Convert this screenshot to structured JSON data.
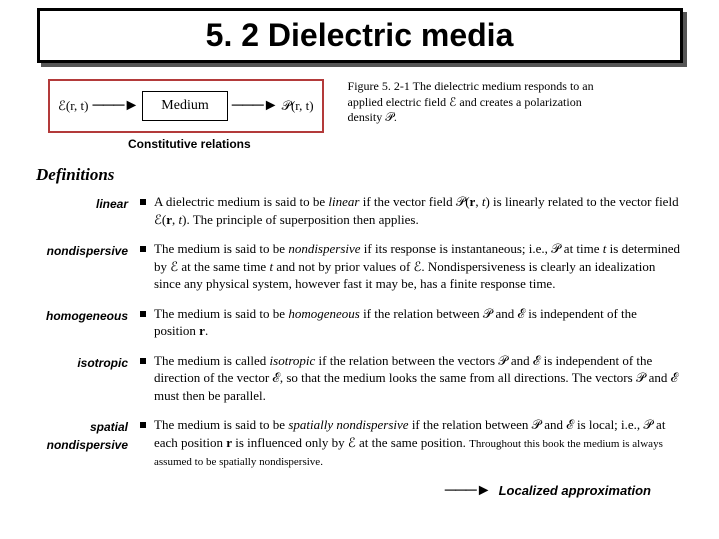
{
  "title": "5. 2  Dielectric media",
  "figure": {
    "input": "ℰ(r, t)",
    "medium": "Medium",
    "output": "𝒫(r, t)",
    "caption_label": "Figure 5. 2-1",
    "caption_text": "The dielectric medium responds to an applied electric field ℰ and creates a polarization density 𝒫."
  },
  "constitutive_label": "Constitutive relations",
  "definitions_heading": "Definitions",
  "defs": [
    {
      "label": "linear",
      "text": "A dielectric medium is said to be linear if the vector field 𝒫(r, t) is linearly related to the vector field ℰ(r, t). The principle of superposition then applies."
    },
    {
      "label": "nondispersive",
      "text": "The medium is said to be nondispersive if its response is instantaneous; i.e., 𝒫 at time t is determined by ℰ at the same time t and not by prior values of ℰ. Nondispersiveness is clearly an idealization since any physical system, however fast it may be, has a finite response time."
    },
    {
      "label": "homogeneous",
      "text": "The medium is said to be homogeneous if the relation between 𝒫 and ℰ is independent of the position r."
    },
    {
      "label": "isotropic",
      "text": "The medium is called isotropic if the relation between the vectors 𝒫 and ℰ is independent of the direction of the vector ℰ, so that the medium looks the same from all directions. The vectors 𝒫 and ℰ must then be parallel."
    },
    {
      "label": "spatial nondispersive",
      "text": "The medium is said to be spatially nondispersive if the relation between 𝒫 and ℰ is local; i.e., 𝒫 at each position r is influenced only by ℰ at the same position. Throughout this book the medium is always assumed to be spatially nondispersive."
    }
  ],
  "localized": "Localized approximation",
  "colors": {
    "diagram_border": "#b33a3a",
    "text": "#000000",
    "bg": "#ffffff"
  }
}
